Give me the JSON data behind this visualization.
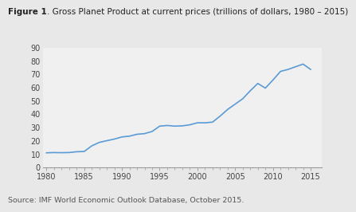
{
  "title_bold": "Figure 1",
  "title_rest": ". Gross Planet Product at current prices (trillions of dollars, 1980 – 2015)",
  "source_text": "Source: IMF World Economic Outlook Database, October 2015.",
  "years": [
    1980,
    1981,
    1982,
    1983,
    1984,
    1985,
    1986,
    1987,
    1988,
    1989,
    1990,
    1991,
    1992,
    1993,
    1994,
    1995,
    1996,
    1997,
    1998,
    1999,
    2000,
    2001,
    2002,
    2003,
    2004,
    2005,
    2006,
    2007,
    2008,
    2009,
    2010,
    2011,
    2012,
    2013,
    2014,
    2015
  ],
  "values": [
    11.0,
    11.2,
    11.1,
    11.2,
    11.8,
    12.0,
    16.2,
    18.8,
    20.1,
    21.3,
    22.9,
    23.5,
    24.9,
    25.4,
    27.0,
    31.0,
    31.5,
    31.0,
    31.2,
    32.0,
    33.5,
    33.5,
    34.0,
    38.5,
    43.5,
    47.5,
    51.5,
    57.5,
    63.0,
    59.5,
    65.5,
    72.0,
    73.5,
    75.5,
    77.5,
    73.5
  ],
  "line_color": "#5B9BD5",
  "xlim": [
    1979.5,
    2016.5
  ],
  "ylim": [
    0,
    90
  ],
  "yticks": [
    0,
    10,
    20,
    30,
    40,
    50,
    60,
    70,
    80,
    90
  ],
  "xticks": [
    1980,
    1985,
    1990,
    1995,
    2000,
    2005,
    2010,
    2015
  ],
  "background_color": "#e8e8e8",
  "plot_bg_color": "#f0f0f0",
  "line_width": 1.2,
  "title_fontsize": 7.5,
  "source_fontsize": 6.8
}
